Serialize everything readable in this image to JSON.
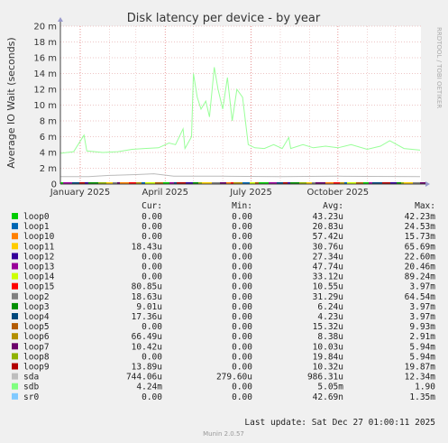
{
  "chart_data": {
    "type": "line",
    "title": "Disk latency per device - by year",
    "ylabel": "Average IO Wait (seconds)",
    "ylim": [
      0,
      0.02
    ],
    "yticks": [
      {
        "v": 0,
        "label": "0"
      },
      {
        "v": 0.002,
        "label": "2 m"
      },
      {
        "v": 0.004,
        "label": "4 m"
      },
      {
        "v": 0.006,
        "label": "6 m"
      },
      {
        "v": 0.008,
        "label": "8 m"
      },
      {
        "v": 0.01,
        "label": "10 m"
      },
      {
        "v": 0.012,
        "label": "12 m"
      },
      {
        "v": 0.014,
        "label": "14 m"
      },
      {
        "v": 0.016,
        "label": "16 m"
      },
      {
        "v": 0.018,
        "label": "18 m"
      },
      {
        "v": 0.02,
        "label": "20 m"
      }
    ],
    "xrange": [
      "2024-12-11",
      "2025-12-28"
    ],
    "xticks": [
      {
        "date": "2025-01-01",
        "label": "January 2025"
      },
      {
        "date": "2025-04-01",
        "label": "April 2025"
      },
      {
        "date": "2025-07-01",
        "label": "July 2025"
      },
      {
        "date": "2025-10-01",
        "label": "October 2025"
      }
    ],
    "grid": true,
    "series": [
      {
        "name": "sdb",
        "color": "#99ff99",
        "points": [
          [
            "2024-12-11",
            0.0039
          ],
          [
            "2024-12-25",
            0.0041
          ],
          [
            "2025-01-05",
            0.0062
          ],
          [
            "2025-01-08",
            0.0042
          ],
          [
            "2025-01-25",
            0.004
          ],
          [
            "2025-02-10",
            0.0041
          ],
          [
            "2025-02-25",
            0.0044
          ],
          [
            "2025-03-10",
            0.0045
          ],
          [
            "2025-03-25",
            0.0046
          ],
          [
            "2025-04-05",
            0.0052
          ],
          [
            "2025-04-12",
            0.005
          ],
          [
            "2025-04-20",
            0.007
          ],
          [
            "2025-04-22",
            0.0045
          ],
          [
            "2025-04-29",
            0.006
          ],
          [
            "2025-05-01",
            0.014
          ],
          [
            "2025-05-05",
            0.011
          ],
          [
            "2025-05-09",
            0.0095
          ],
          [
            "2025-05-14",
            0.0105
          ],
          [
            "2025-05-18",
            0.0085
          ],
          [
            "2025-05-23",
            0.0148
          ],
          [
            "2025-05-27",
            0.012
          ],
          [
            "2025-06-01",
            0.0095
          ],
          [
            "2025-06-06",
            0.0135
          ],
          [
            "2025-06-11",
            0.008
          ],
          [
            "2025-06-16",
            0.012
          ],
          [
            "2025-06-22",
            0.011
          ],
          [
            "2025-06-28",
            0.005
          ],
          [
            "2025-07-05",
            0.0046
          ],
          [
            "2025-07-15",
            0.0045
          ],
          [
            "2025-07-25",
            0.005
          ],
          [
            "2025-08-03",
            0.0045
          ],
          [
            "2025-08-10",
            0.0059
          ],
          [
            "2025-08-12",
            0.0045
          ],
          [
            "2025-08-25",
            0.005
          ],
          [
            "2025-09-05",
            0.0046
          ],
          [
            "2025-09-18",
            0.0048
          ],
          [
            "2025-10-01",
            0.0046
          ],
          [
            "2025-10-15",
            0.005
          ],
          [
            "2025-11-01",
            0.0044
          ],
          [
            "2025-11-15",
            0.0048
          ],
          [
            "2025-11-25",
            0.0055
          ],
          [
            "2025-12-10",
            0.0045
          ],
          [
            "2025-12-27",
            0.0043
          ]
        ]
      },
      {
        "name": "sda",
        "color": "#bbbbbb",
        "points": [
          [
            "2024-12-11",
            0.00095
          ],
          [
            "2025-01-10",
            0.00095
          ],
          [
            "2025-02-01",
            0.0011
          ],
          [
            "2025-03-01",
            0.0012
          ],
          [
            "2025-03-20",
            0.0013
          ],
          [
            "2025-04-10",
            0.001
          ],
          [
            "2025-06-01",
            0.001
          ],
          [
            "2025-08-01",
            0.00095
          ],
          [
            "2025-10-01",
            0.001
          ],
          [
            "2025-12-27",
            0.00095
          ]
        ]
      }
    ],
    "legend_header": {
      "cur": "Cur:",
      "min": "Min:",
      "avg": "Avg:",
      "max": "Max:"
    },
    "legend": [
      {
        "name": "loop0",
        "color": "#00cc00",
        "cur": "0.00",
        "min": "0.00",
        "avg": "43.23u",
        "max": "42.23m"
      },
      {
        "name": "loop1",
        "color": "#0066b3",
        "cur": "0.00",
        "min": "0.00",
        "avg": "20.83u",
        "max": "24.53m"
      },
      {
        "name": "loop10",
        "color": "#ff8000",
        "cur": "0.00",
        "min": "0.00",
        "avg": "57.42u",
        "max": "15.73m"
      },
      {
        "name": "loop11",
        "color": "#ffcc00",
        "cur": "18.43u",
        "min": "0.00",
        "avg": "30.76u",
        "max": "65.69m"
      },
      {
        "name": "loop12",
        "color": "#330099",
        "cur": "0.00",
        "min": "0.00",
        "avg": "27.34u",
        "max": "22.60m"
      },
      {
        "name": "loop13",
        "color": "#990099",
        "cur": "0.00",
        "min": "0.00",
        "avg": "47.74u",
        "max": "20.46m"
      },
      {
        "name": "loop14",
        "color": "#ccff00",
        "cur": "0.00",
        "min": "0.00",
        "avg": "33.12u",
        "max": "89.24m"
      },
      {
        "name": "loop15",
        "color": "#ff0000",
        "cur": "80.85u",
        "min": "0.00",
        "avg": "10.55u",
        "max": "3.97m"
      },
      {
        "name": "loop2",
        "color": "#808080",
        "cur": "18.63u",
        "min": "0.00",
        "avg": "31.29u",
        "max": "64.54m"
      },
      {
        "name": "loop3",
        "color": "#008f00",
        "cur": "9.01u",
        "min": "0.00",
        "avg": "6.24u",
        "max": "3.97m"
      },
      {
        "name": "loop4",
        "color": "#00487d",
        "cur": "17.36u",
        "min": "0.00",
        "avg": "4.23u",
        "max": "3.97m"
      },
      {
        "name": "loop5",
        "color": "#b35a00",
        "cur": "0.00",
        "min": "0.00",
        "avg": "15.32u",
        "max": "9.93m"
      },
      {
        "name": "loop6",
        "color": "#b38f00",
        "cur": "66.49u",
        "min": "0.00",
        "avg": "8.38u",
        "max": "2.91m"
      },
      {
        "name": "loop7",
        "color": "#6b006b",
        "cur": "10.42u",
        "min": "0.00",
        "avg": "10.03u",
        "max": "5.94m"
      },
      {
        "name": "loop8",
        "color": "#8fb300",
        "cur": "0.00",
        "min": "0.00",
        "avg": "19.84u",
        "max": "5.94m"
      },
      {
        "name": "loop9",
        "color": "#b30000",
        "cur": "13.89u",
        "min": "0.00",
        "avg": "10.32u",
        "max": "19.87m"
      },
      {
        "name": "sda",
        "color": "#bebebe",
        "cur": "744.06u",
        "min": "279.60u",
        "avg": "986.31u",
        "max": "12.34m"
      },
      {
        "name": "sdb",
        "color": "#80ff80",
        "cur": "4.24m",
        "min": "0.00",
        "avg": "5.05m",
        "max": "1.90"
      },
      {
        "name": "sr0",
        "color": "#80c9ff",
        "cur": "0.00",
        "min": "0.00",
        "avg": "42.69n",
        "max": "1.35m"
      }
    ],
    "last_update": "Last update: Sat Dec 27 01:00:11 2025",
    "side_label": "RRDTOOL / TOBI OETIKER",
    "footer": "Munin 2.0.57"
  }
}
